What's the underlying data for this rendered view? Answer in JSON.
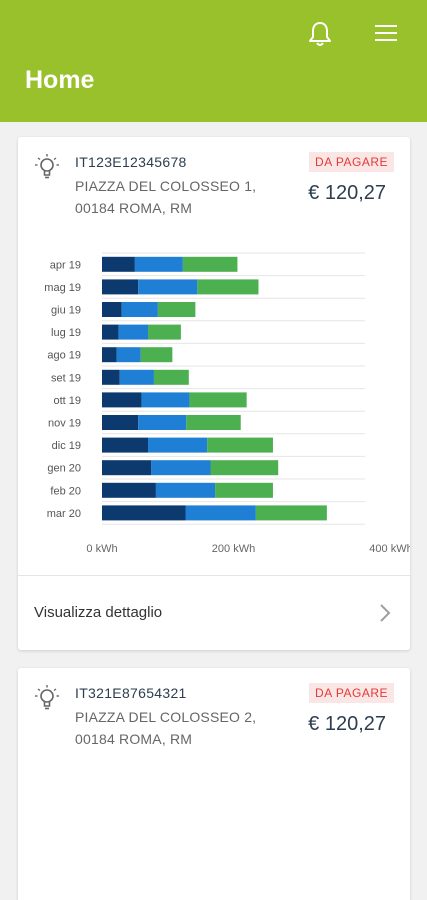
{
  "appbar": {
    "title": "Home",
    "bell_icon": "bell-icon",
    "menu_icon": "hamburger-menu-icon",
    "color": "#99c12c"
  },
  "cards": [
    {
      "pod": "IT123E12345678",
      "address_line1": "PIAZZA DEL COLOSSEO 1,",
      "address_line2": "00184 ROMA, RM",
      "status": "DA PAGARE",
      "amount": "€ 120,27",
      "detail_label": "Visualizza dettaglio"
    },
    {
      "pod": "IT321E87654321",
      "address_line1": "PIAZZA DEL COLOSSEO 2,",
      "address_line2": "00184 ROMA, RM",
      "status": "DA PAGARE",
      "amount": "€ 120,27"
    }
  ],
  "chart_data": {
    "type": "bar",
    "orientation": "horizontal",
    "stacked": true,
    "categories": [
      "apr 19",
      "mag 19",
      "giu 19",
      "lug 19",
      "ago 19",
      "set 19",
      "ott 19",
      "nov 19",
      "dic 19",
      "gen 20",
      "feb 20",
      "mar 20"
    ],
    "series": [
      {
        "color": "#0d3a6e",
        "values": [
          50,
          55,
          30,
          25,
          22,
          27,
          60,
          55,
          70,
          75,
          82,
          127
        ]
      },
      {
        "color": "#1f7fd4",
        "values": [
          73,
          90,
          55,
          45,
          37,
          52,
          73,
          73,
          90,
          90,
          90,
          107
        ]
      },
      {
        "color": "#4caf50",
        "values": [
          83,
          93,
          57,
          50,
          48,
          53,
          87,
          83,
          100,
          103,
          88,
          108
        ]
      }
    ],
    "xticks": [
      "0 kWh",
      "200 kWh",
      "400 kWh"
    ],
    "xlim": [
      0,
      400
    ],
    "grid": true
  }
}
